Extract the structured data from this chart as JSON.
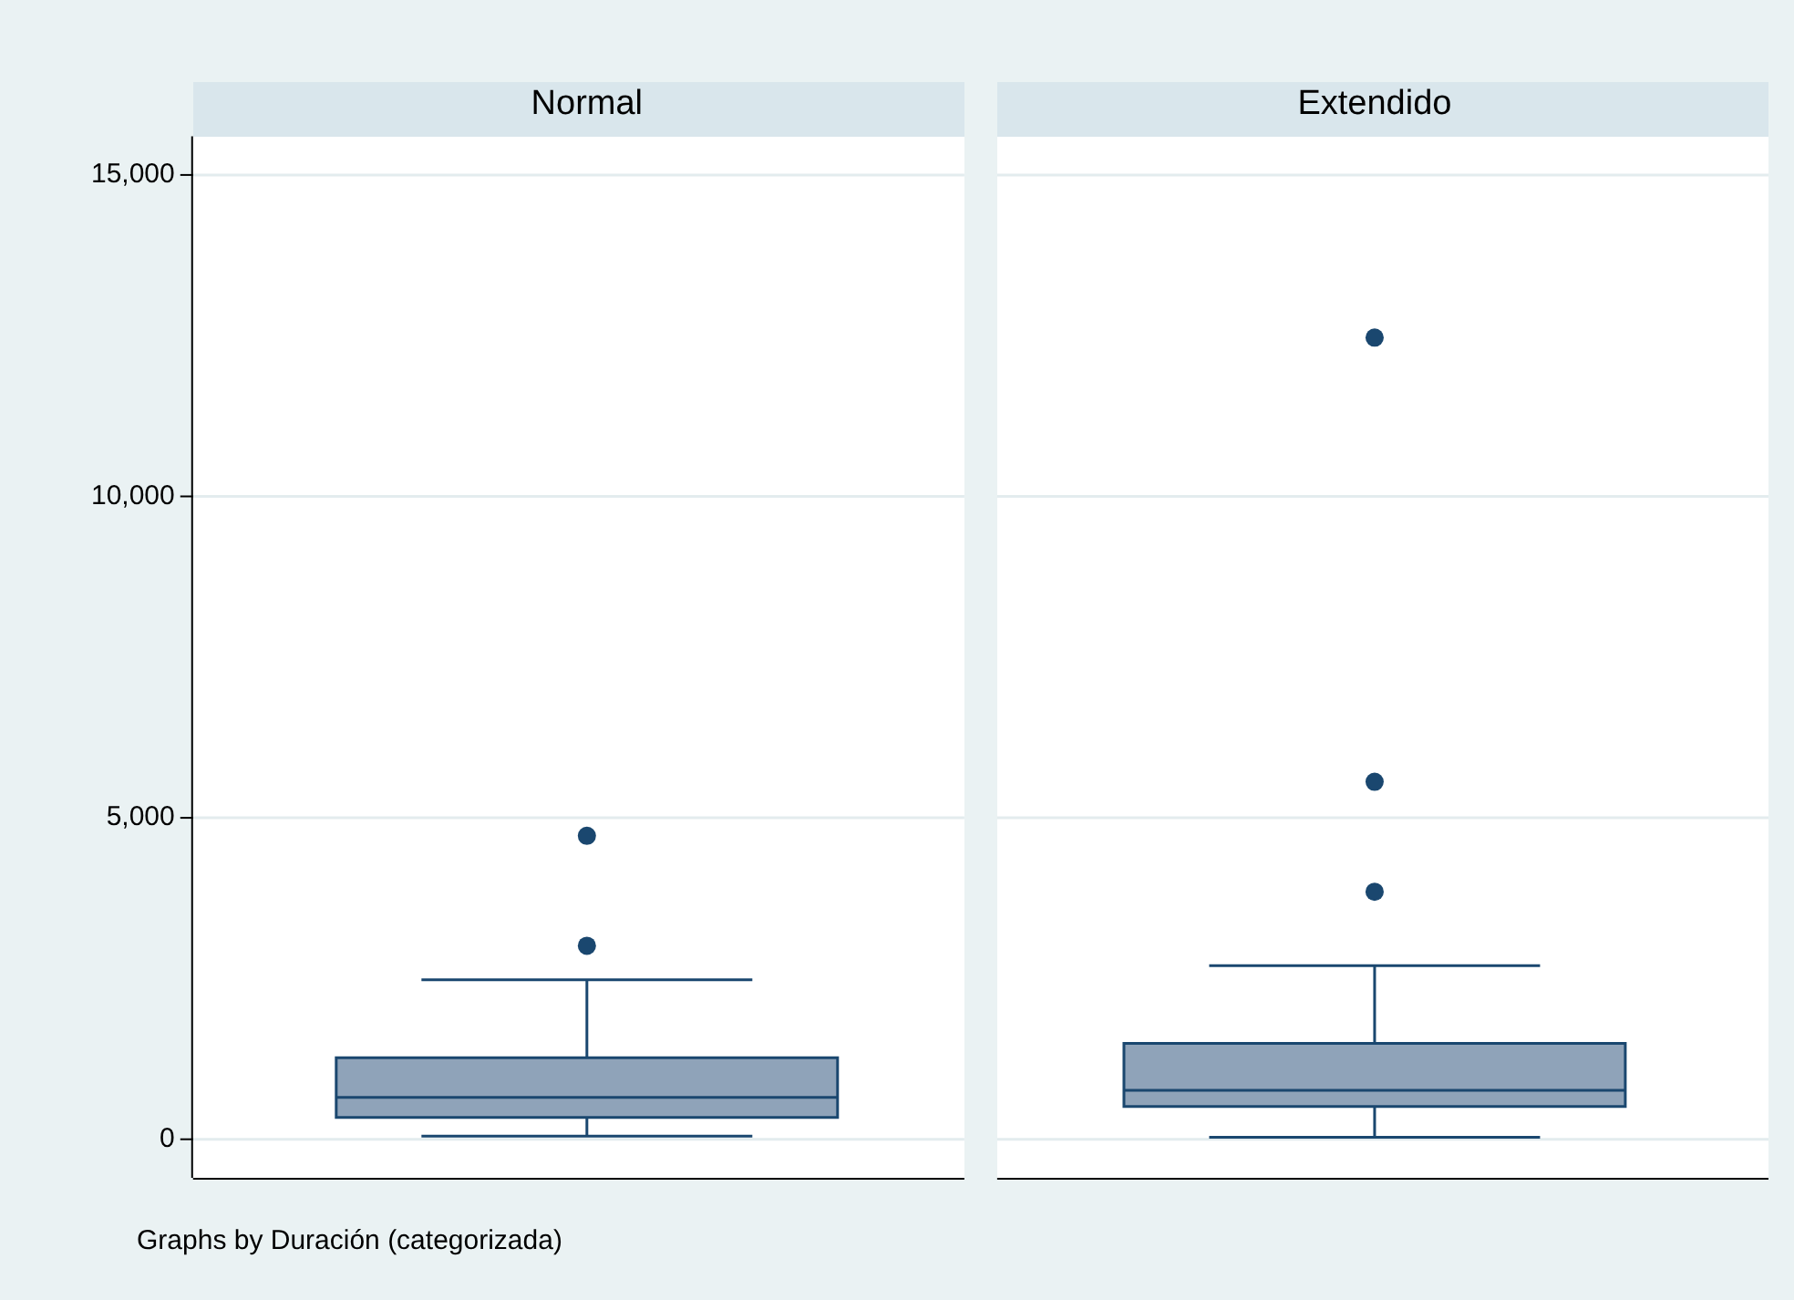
{
  "chart_data": {
    "type": "box",
    "categories": [
      "Normal",
      "Extendido"
    ],
    "color": "#8fa3b9",
    "ylim": [
      -600,
      15600
    ],
    "yticks": [
      {
        "value": 0,
        "label": "0"
      },
      {
        "value": 5000,
        "label": "5,000"
      },
      {
        "value": 10000,
        "label": "10,000"
      },
      {
        "value": 15000,
        "label": "15,000"
      }
    ],
    "grid": "y",
    "boxes": [
      {
        "low": 50,
        "q1": 340,
        "median": 650,
        "q3": 1270,
        "high": 2480,
        "outliers": [
          3010,
          4720
        ]
      },
      {
        "low": 30,
        "q1": 510,
        "median": 760,
        "q3": 1490,
        "high": 2700,
        "outliers": [
          3850,
          5560,
          12470
        ]
      }
    ],
    "annotations": [
      "Graphs by Duración (categorizada)"
    ]
  }
}
